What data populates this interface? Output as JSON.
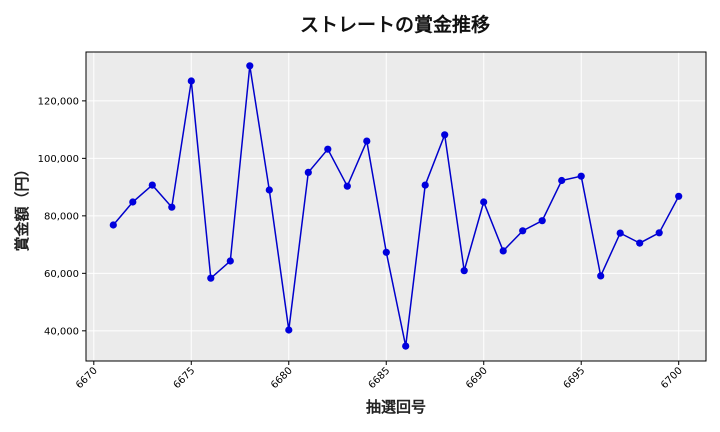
{
  "chart_data": {
    "type": "line",
    "title": "ストレートの賞金推移",
    "xlabel": "抽選回号",
    "ylabel": "賞金額（円）",
    "xlim": [
      6669.6,
      6701.4
    ],
    "ylim": [
      29500,
      137000
    ],
    "x_ticks": [
      6670,
      6675,
      6680,
      6685,
      6690,
      6695,
      6700
    ],
    "y_ticks": [
      40000,
      60000,
      80000,
      100000,
      120000
    ],
    "y_tick_labels": [
      "40,000",
      "60,000",
      "80,000",
      "100,000",
      "120,000"
    ],
    "grid": true,
    "line_color": "#0000cc",
    "marker_color": "#0000dd",
    "plot_background": "#ebebeb",
    "series": [
      {
        "x": [
          6671,
          6672,
          6673,
          6674,
          6675,
          6676,
          6677,
          6678,
          6679,
          6680,
          6681,
          6682,
          6683,
          6684,
          6685,
          6686,
          6687,
          6688,
          6689,
          6690,
          6691,
          6692,
          6693,
          6694,
          6695,
          6696,
          6697,
          6698,
          6699,
          6700
        ],
        "values": [
          76800,
          84800,
          90700,
          83000,
          126900,
          58300,
          64300,
          132200,
          89000,
          40300,
          95100,
          103200,
          90300,
          106000,
          67300,
          34700,
          90700,
          108200,
          60900,
          84800,
          67800,
          74800,
          78300,
          92300,
          93800,
          59100,
          74000,
          70500,
          74100,
          86800
        ]
      }
    ]
  }
}
